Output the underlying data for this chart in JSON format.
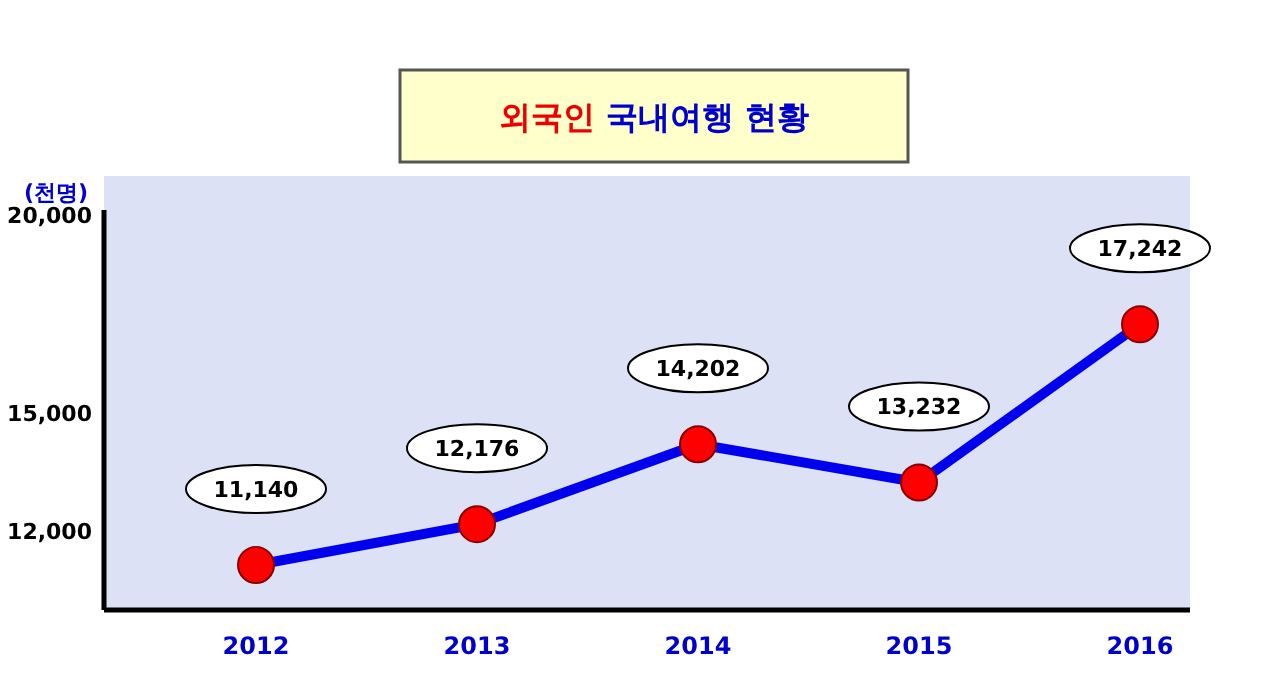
{
  "chart_data": {
    "type": "line",
    "title": "외국인 국내여행 현황",
    "ylabel": "(천명)",
    "categories": [
      "2012",
      "2013",
      "2014",
      "2015",
      "2016"
    ],
    "series": [
      {
        "color": "#0000ee",
        "values": [
          11140,
          12176,
          14202,
          13232,
          17242
        ],
        "value_labels": [
          "11,140",
          "12,176",
          "14,202",
          "13,232",
          "17,242"
        ]
      }
    ],
    "ylim": [
      10000,
      21000
    ],
    "yticks": [
      {
        "value": 12000,
        "label": "12,000"
      },
      {
        "value": 15000,
        "label": "15,000"
      },
      {
        "value": 20000,
        "label": "20,000"
      }
    ],
    "marker": "circle"
  }
}
